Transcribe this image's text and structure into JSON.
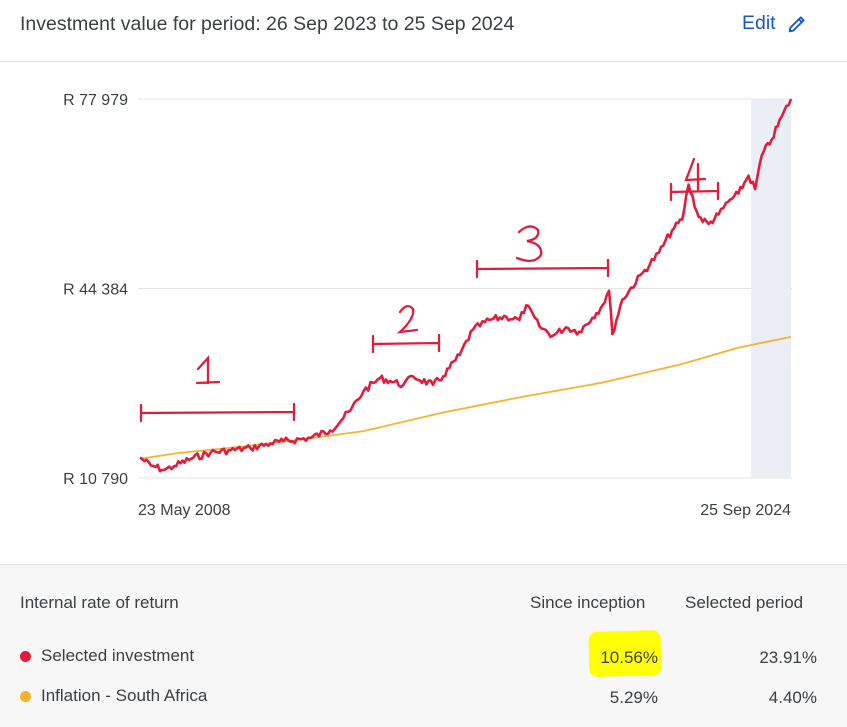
{
  "header": {
    "title": "Investment value for period: 26 Sep 2023 to 25 Sep 2024",
    "edit_label": "Edit",
    "edit_icon": "pencil-icon"
  },
  "chart_data": {
    "type": "line",
    "x_start": "2008-05-23",
    "x_end": "2024-09-25",
    "x_tick_labels": [
      "23 May 2008",
      "25 Sep 2024"
    ],
    "y_tick_labels": [
      "R 77 979",
      "R 44 384",
      "R 10 790"
    ],
    "ylim": [
      10790,
      77979
    ],
    "y_ticks": [
      10790,
      44384,
      77979
    ],
    "shaded_period": [
      "2023-09-26",
      "2024-09-25"
    ],
    "series": [
      {
        "name": "Selected investment",
        "color": "#e21d3c",
        "points": [
          [
            "2008-05-23",
            14400
          ],
          [
            "2008-09-01",
            13000
          ],
          [
            "2009-01-01",
            12200
          ],
          [
            "2009-04-01",
            12900
          ],
          [
            "2009-09-01",
            14200
          ],
          [
            "2010-03-01",
            15300
          ],
          [
            "2010-09-01",
            15700
          ],
          [
            "2011-03-01",
            16100
          ],
          [
            "2011-09-01",
            16900
          ],
          [
            "2012-01-01",
            17300
          ],
          [
            "2012-09-01",
            17900
          ],
          [
            "2013-03-01",
            19200
          ],
          [
            "2013-09-01",
            22700
          ],
          [
            "2014-01-01",
            26200
          ],
          [
            "2014-06-01",
            28500
          ],
          [
            "2014-09-01",
            28000
          ],
          [
            "2015-01-01",
            27300
          ],
          [
            "2015-04-01",
            28800
          ],
          [
            "2015-10-01",
            27300
          ],
          [
            "2016-01-01",
            28800
          ],
          [
            "2016-06-01",
            32600
          ],
          [
            "2016-10-01",
            37100
          ],
          [
            "2017-03-01",
            38800
          ],
          [
            "2017-08-01",
            39400
          ],
          [
            "2017-12-01",
            38800
          ],
          [
            "2018-02-01",
            41400
          ],
          [
            "2018-06-01",
            37700
          ],
          [
            "2018-10-01",
            36000
          ],
          [
            "2019-02-01",
            37500
          ],
          [
            "2019-06-01",
            36700
          ],
          [
            "2019-10-01",
            39200
          ],
          [
            "2020-01-01",
            41400
          ],
          [
            "2020-03-01",
            44000
          ],
          [
            "2020-04-01",
            36300
          ],
          [
            "2020-07-01",
            42400
          ],
          [
            "2021-01-01",
            47100
          ],
          [
            "2021-06-01",
            50700
          ],
          [
            "2021-10-01",
            54700
          ],
          [
            "2022-01-01",
            56600
          ],
          [
            "2022-03-01",
            62800
          ],
          [
            "2022-06-01",
            57100
          ],
          [
            "2022-09-01",
            55800
          ],
          [
            "2022-12-01",
            57500
          ],
          [
            "2023-03-01",
            59800
          ],
          [
            "2023-06-01",
            61200
          ],
          [
            "2023-09-01",
            64400
          ],
          [
            "2023-11-01",
            62000
          ],
          [
            "2024-01-01",
            68000
          ],
          [
            "2024-04-01",
            70800
          ],
          [
            "2024-07-01",
            74800
          ],
          [
            "2024-09-25",
            77979
          ]
        ]
      },
      {
        "name": "Inflation - South Africa",
        "color": "#f8b230",
        "points": [
          [
            "2008-05-23",
            14200
          ],
          [
            "2009-05-01",
            15200
          ],
          [
            "2011-01-01",
            16400
          ],
          [
            "2012-06-01",
            17600
          ],
          [
            "2014-01-01",
            19100
          ],
          [
            "2016-01-01",
            22400
          ],
          [
            "2018-01-01",
            25200
          ],
          [
            "2020-01-01",
            27700
          ],
          [
            "2022-01-01",
            31000
          ],
          [
            "2023-06-01",
            33900
          ],
          [
            "2024-09-25",
            35800
          ]
        ]
      }
    ],
    "annotations": [
      "1",
      "2",
      "3",
      "4"
    ]
  },
  "footer": {
    "heading": "Internal rate of return",
    "col1": "Since inception",
    "col2": "Selected period",
    "rows": [
      {
        "label": "Selected investment",
        "since": "10.56%",
        "period": "23.91%",
        "color": "#e21d3c"
      },
      {
        "label": "Inflation - South Africa",
        "since": "5.29%",
        "period": "4.40%",
        "color": "#f8b230"
      }
    ]
  }
}
